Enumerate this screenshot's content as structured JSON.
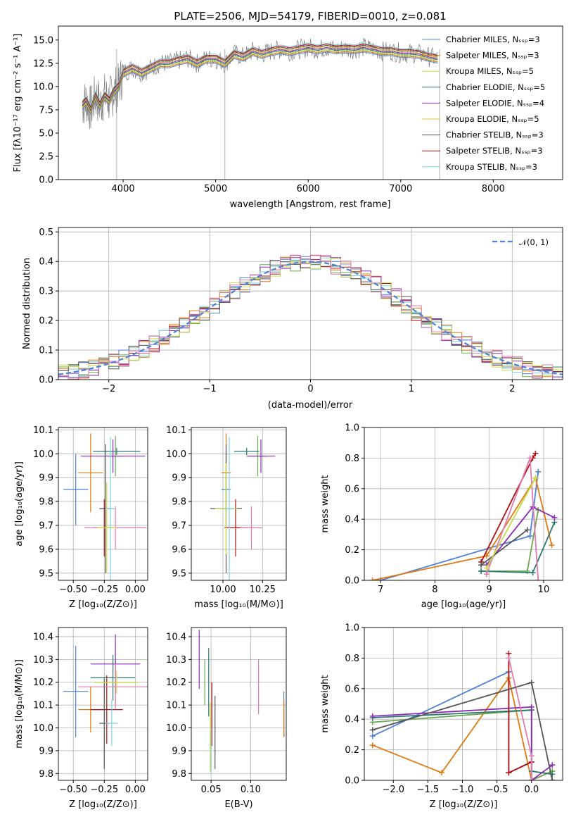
{
  "figure": {
    "title": "PLATE=2506, MJD=54179, FIBERID=0010, z=0.081"
  },
  "palette": {
    "models": [
      "#4f81d6",
      "#e07a10",
      "#c8dc44",
      "#2a7a74",
      "#8e2ab8",
      "#e0c030",
      "#555555",
      "#b01010",
      "#80d0e0"
    ],
    "dot": [
      "#4f81d6",
      "#e07a10",
      "#6aa84f",
      "#2a7a74",
      "#8e2ab8",
      "#b01010",
      "#e07ab0",
      "#555555",
      "#c8dc44",
      "#80d0e0"
    ]
  },
  "chart_data": [
    {
      "id": "spectrum",
      "type": "line",
      "title": "PLATE=2506, MJD=54179, FIBERID=0010, z=0.081",
      "xlabel": "wavelength [Angstrom, rest frame]",
      "ylabel": "Flux [fλ10⁻¹⁷ erg cm⁻² s⁻¹ A⁻¹]",
      "xlim": [
        3300,
        8750
      ],
      "ylim": [
        0,
        16.5
      ],
      "xticks": [
        4000,
        5000,
        6000,
        7000,
        8000
      ],
      "yticks": [
        0.0,
        2.5,
        5.0,
        7.5,
        10.0,
        12.5,
        15.0
      ],
      "ytick_labels": [
        "0.0",
        "2.5",
        "5.0",
        "7.5",
        "10.0",
        "12.5",
        "15.0"
      ],
      "legend_position": "right",
      "legend": [
        "Chabrier MILES, Nₛₛₚ=3",
        "Salpeter MILES, Nₛₛₚ=3",
        "Kroupa MILES, Nₛₛₚ=5",
        "Chabrier ELODIE, Nₛₛₚ=5",
        "Salpeter ELODIE, Nₛₛₚ=4",
        "Kroupa ELODIE, Nₛₛₚ=5",
        "Chabrier STELIB, Nₛₛₚ=3",
        "Salpeter STELIB, Nₛₛₚ=3",
        "Kroupa STELIB, Nₛₛₚ=3"
      ],
      "data_series": {
        "x": [
          3560,
          3600,
          3650,
          3700,
          3750,
          3800,
          3850,
          3900,
          3950,
          4000,
          4100,
          4200,
          4300,
          4400,
          4500,
          4600,
          4700,
          4800,
          4900,
          5000,
          5100,
          5200,
          5300,
          5400,
          5500,
          5600,
          5700,
          5800,
          5900,
          6000,
          6100,
          6200,
          6300,
          6400,
          6500,
          6600,
          6700,
          6800,
          6900,
          7000,
          7100,
          7200,
          7300,
          7400
        ],
        "y": [
          8.0,
          8.5,
          7.5,
          9.0,
          8.0,
          9.0,
          8.5,
          9.5,
          10.0,
          11.5,
          12.0,
          11.5,
          12.0,
          12.5,
          12.5,
          12.8,
          13.0,
          12.5,
          13.0,
          13.0,
          12.5,
          13.5,
          13.2,
          13.8,
          13.5,
          13.8,
          14.0,
          13.8,
          14.0,
          14.2,
          14.0,
          14.2,
          14.0,
          14.1,
          14.0,
          14.2,
          14.0,
          13.8,
          13.8,
          13.6,
          13.6,
          13.5,
          13.2,
          13.0
        ]
      }
    },
    {
      "id": "residuals",
      "type": "line",
      "xlabel": "(data-model)/error",
      "ylabel": "Normed distribution",
      "xlim": [
        -2.5,
        2.5
      ],
      "ylim": [
        0,
        0.515
      ],
      "xticks": [
        -2,
        -1,
        0,
        1,
        2
      ],
      "xtick_labels": [
        "−2",
        "−1",
        "0",
        "1",
        "2"
      ],
      "yticks": [
        0.0,
        0.1,
        0.2,
        0.3,
        0.4,
        0.5
      ],
      "ytick_labels": [
        "0.0",
        "0.1",
        "0.2",
        "0.3",
        "0.4",
        "0.5"
      ],
      "grid": true,
      "legend_position": "top-right",
      "legend": [
        "𝒩(0, 1)"
      ],
      "reference": "N(0,1) gaussian"
    },
    {
      "id": "age-vs-Z",
      "type": "scatter",
      "xlabel": "Z [log₁₀(Z/Z⊙)]",
      "ylabel": "age  [log₁₀(age/yr)]",
      "xlim": [
        -0.62,
        0.1
      ],
      "ylim": [
        9.47,
        10.11
      ],
      "xticks": [
        -0.5,
        -0.25,
        0.0
      ],
      "xtick_labels": [
        "−0.50",
        "−0.25",
        "0.00"
      ],
      "yticks": [
        9.5,
        9.6,
        9.7,
        9.8,
        9.9,
        10.0,
        10.1
      ],
      "ytick_labels": [
        "9.5",
        "9.6",
        "9.7",
        "9.8",
        "9.9",
        "10.0",
        "10.1"
      ],
      "grid": true,
      "points": [
        {
          "x": -0.48,
          "y": 9.85,
          "xerr": 0.1,
          "yerr": 0.15
        },
        {
          "x": -0.36,
          "y": 9.92,
          "xerr": 0.1,
          "yerr": 0.165
        },
        {
          "x": -0.16,
          "y": 9.99,
          "xerr": 0.06,
          "yerr": 0.085
        },
        {
          "x": -0.15,
          "y": 10.01,
          "xerr": 0.19,
          "yerr": 0.015
        },
        {
          "x": -0.18,
          "y": 9.99,
          "xerr": 0.26,
          "yerr": 0.07
        },
        {
          "x": -0.25,
          "y": 9.69,
          "xerr": 0.08,
          "yerr": 0.12
        },
        {
          "x": -0.16,
          "y": 9.69,
          "xerr": 0.25,
          "yerr": 0.09
        },
        {
          "x": -0.24,
          "y": 9.77,
          "xerr": 0.05,
          "yerr": 0.27
        },
        {
          "x": -0.23,
          "y": 9.69,
          "xerr": 0.08,
          "yerr": 0.19
        },
        {
          "x": -0.2,
          "y": 9.77,
          "xerr": 0.04,
          "yerr": 0.3
        }
      ]
    },
    {
      "id": "age-vs-mass",
      "type": "scatter",
      "xlabel": "mass [log₁₀(M/M⊙)]",
      "xlim": [
        9.8,
        10.4
      ],
      "ylim": [
        9.47,
        10.11
      ],
      "xticks": [
        10.0,
        10.25
      ],
      "xtick_labels": [
        "10.00",
        "10.25"
      ],
      "yticks": [
        9.5,
        9.6,
        9.7,
        9.8,
        9.9,
        10.0,
        10.1
      ],
      "ytick_labels": [
        "9.5",
        "9.6",
        "9.7",
        "9.8",
        "9.9",
        "10.0",
        "10.1"
      ],
      "grid": true,
      "points": [
        {
          "x": 10.02,
          "y": 9.85,
          "xerr": 0.03,
          "yerr": 0.15
        },
        {
          "x": 10.02,
          "y": 9.92,
          "xerr": 0.03,
          "yerr": 0.165
        },
        {
          "x": 10.22,
          "y": 9.99,
          "xerr": 0.06,
          "yerr": 0.085
        },
        {
          "x": 10.15,
          "y": 10.01,
          "xerr": 0.08,
          "yerr": 0.015
        },
        {
          "x": 10.24,
          "y": 9.99,
          "xerr": 0.09,
          "yerr": 0.07
        },
        {
          "x": 10.08,
          "y": 9.69,
          "xerr": 0.07,
          "yerr": 0.12
        },
        {
          "x": 10.18,
          "y": 9.69,
          "xerr": 0.07,
          "yerr": 0.09
        },
        {
          "x": 10.02,
          "y": 9.77,
          "xerr": 0.1,
          "yerr": 0.27
        },
        {
          "x": 10.02,
          "y": 9.77,
          "xerr": 0.07,
          "yerr": 0.19
        },
        {
          "x": 10.04,
          "y": 9.77,
          "xerr": 0.03,
          "yerr": 0.3
        }
      ]
    },
    {
      "id": "mass-weight-vs-age",
      "type": "line",
      "xlabel": "age  [log₁₀(age/yr)]",
      "ylabel": "mass weight",
      "xlim": [
        6.7,
        10.35
      ],
      "ylim": [
        0,
        1.0
      ],
      "xticks": [
        7,
        8,
        9,
        10
      ],
      "yticks": [
        0.0,
        0.2,
        0.4,
        0.6,
        0.8,
        1.0
      ],
      "ytick_labels": [
        "0.0",
        "0.2",
        "0.4",
        "0.6",
        "0.8",
        "1.0"
      ],
      "grid": true,
      "series": [
        {
          "x": [
            7.0,
            9.75,
            9.9
          ],
          "y": [
            0.0,
            0.29,
            0.71
          ]
        },
        {
          "x": [
            6.85,
            8.95,
            9.85,
            10.15
          ],
          "y": [
            0.0,
            0.16,
            0.67,
            0.23
          ]
        },
        {
          "x": [
            8.85,
            9.7,
            9.9
          ],
          "y": [
            0.06,
            0.06,
            0.46
          ]
        },
        {
          "x": [
            8.85,
            9.8,
            10.2
          ],
          "y": [
            0.06,
            0.05,
            0.38
          ]
        },
        {
          "x": [
            8.95,
            9.8,
            10.2
          ],
          "y": [
            0.1,
            0.48,
            0.41
          ]
        },
        {
          "x": [
            8.85,
            9.8,
            9.85
          ],
          "y": [
            0.12,
            0.8,
            0.83
          ]
        },
        {
          "x": [
            8.95,
            9.75,
            9.9
          ],
          "y": [
            0.04,
            0.8,
            0.0
          ]
        },
        {
          "x": [
            8.85,
            9.7
          ],
          "y": [
            0.1,
            0.33
          ]
        },
        {
          "x": [
            8.95,
            9.85
          ],
          "y": [
            0.08,
            0.67
          ]
        }
      ]
    },
    {
      "id": "mass-vs-Z",
      "type": "scatter",
      "xlabel": "Z [log₁₀(Z/Z⊙)]",
      "ylabel": "mass [log₁₀(M/M⊙)]",
      "xlim": [
        -0.62,
        0.1
      ],
      "ylim": [
        9.77,
        10.44
      ],
      "xticks": [
        -0.5,
        -0.25,
        0.0
      ],
      "xtick_labels": [
        "−0.50",
        "−0.25",
        "0.00"
      ],
      "yticks": [
        9.8,
        9.9,
        10.0,
        10.1,
        10.2,
        10.3,
        10.4
      ],
      "ytick_labels": [
        "9.8",
        "9.9",
        "10.0",
        "10.1",
        "10.2",
        "10.3",
        "10.4"
      ],
      "grid": true,
      "points": [
        {
          "x": -0.48,
          "y": 10.16,
          "xerr": 0.1,
          "yerr": 0.2
        },
        {
          "x": -0.36,
          "y": 10.08,
          "xerr": 0.1,
          "yerr": 0.1
        },
        {
          "x": -0.16,
          "y": 10.2,
          "xerr": 0.17,
          "yerr": 0.1
        },
        {
          "x": -0.18,
          "y": 10.22,
          "xerr": 0.18,
          "yerr": 0.1
        },
        {
          "x": -0.16,
          "y": 10.28,
          "xerr": 0.2,
          "yerr": 0.13
        },
        {
          "x": -0.23,
          "y": 10.08,
          "xerr": 0.13,
          "yerr": 0.15
        },
        {
          "x": -0.16,
          "y": 10.18,
          "xerr": 0.3,
          "yerr": 0.1
        },
        {
          "x": -0.25,
          "y": 10.02,
          "xerr": 0.04,
          "yerr": 0.2
        },
        {
          "x": -0.15,
          "y": 10.2,
          "xerr": 0.18,
          "yerr": 0.05
        },
        {
          "x": -0.19,
          "y": 10.02,
          "xerr": 0.05,
          "yerr": 0.1
        }
      ]
    },
    {
      "id": "ebv",
      "type": "scatter",
      "xlabel": "E(B-V)",
      "xlim": [
        0.025,
        0.145
      ],
      "ylim": [
        9.77,
        10.44
      ],
      "xticks": [
        0.05,
        0.1
      ],
      "xtick_labels": [
        "0.05",
        "0.10"
      ],
      "yticks": [
        9.8,
        9.9,
        10.0,
        10.1,
        10.2,
        10.3,
        10.4
      ],
      "ytick_labels": [
        "9.8",
        "9.9",
        "10.0",
        "10.1",
        "10.2",
        "10.3",
        "10.4"
      ],
      "grid": true,
      "points": [
        {
          "x": 0.142,
          "y": 10.06,
          "yerr": 0.1
        },
        {
          "x": 0.142,
          "y": 10.04,
          "yerr": 0.08
        },
        {
          "x": 0.042,
          "y": 10.2,
          "yerr": 0.1
        },
        {
          "x": 0.047,
          "y": 10.2,
          "yerr": 0.15
        },
        {
          "x": 0.035,
          "y": 10.3,
          "yerr": 0.13
        },
        {
          "x": 0.051,
          "y": 10.06,
          "yerr": 0.14
        },
        {
          "x": 0.11,
          "y": 10.18,
          "yerr": 0.12
        },
        {
          "x": 0.055,
          "y": 9.98,
          "yerr": 0.16
        },
        {
          "x": 0.049,
          "y": 9.96,
          "yerr": 0.15
        },
        {
          "x": 0.05,
          "y": 9.9,
          "yerr": 0.1
        }
      ]
    },
    {
      "id": "mass-weight-vs-Z",
      "type": "line",
      "xlabel": "Z [log₁₀(Z/Z⊙)]",
      "ylabel": "mass weight",
      "xlim": [
        -2.42,
        0.45
      ],
      "ylim": [
        0,
        1.0
      ],
      "xticks": [
        -2.0,
        -1.5,
        -1.0,
        -0.5,
        0.0
      ],
      "xtick_labels": [
        "−2.0",
        "−1.5",
        "−1.0",
        "−0.5",
        "0.0"
      ],
      "yticks": [
        0.0,
        0.2,
        0.4,
        0.6,
        0.8,
        1.0
      ],
      "ytick_labels": [
        "0.0",
        "0.2",
        "0.4",
        "0.6",
        "0.8",
        "1.0"
      ],
      "grid": true,
      "series": [
        {
          "x": [
            -2.3,
            -0.33,
            -0.33,
            0.0
          ],
          "y": [
            0.29,
            0.71,
            0.05,
            0.12
          ]
        },
        {
          "x": [
            -2.3,
            -1.3,
            -0.33,
            0.0,
            0.3
          ],
          "y": [
            0.23,
            0.05,
            0.67,
            0.0,
            0.06
          ]
        },
        {
          "x": [
            -2.3,
            0.0,
            0.0,
            0.3
          ],
          "y": [
            0.38,
            0.46,
            0.0,
            0.06
          ]
        },
        {
          "x": [
            -2.3,
            0.0,
            0.0,
            0.3
          ],
          "y": [
            0.41,
            0.46,
            0.06,
            0.04
          ]
        },
        {
          "x": [
            -2.3,
            0.0,
            0.0,
            0.3
          ],
          "y": [
            0.42,
            0.48,
            0.0,
            0.1
          ]
        },
        {
          "x": [
            -0.33,
            -0.33,
            0.0
          ],
          "y": [
            0.83,
            0.05,
            0.12
          ]
        },
        {
          "x": [
            -0.33,
            0.0,
            0.0
          ],
          "y": [
            0.8,
            0.16,
            0.0
          ]
        },
        {
          "x": [
            -2.3,
            0.0,
            0.3
          ],
          "y": [
            0.33,
            0.64,
            0.0
          ]
        }
      ]
    }
  ]
}
